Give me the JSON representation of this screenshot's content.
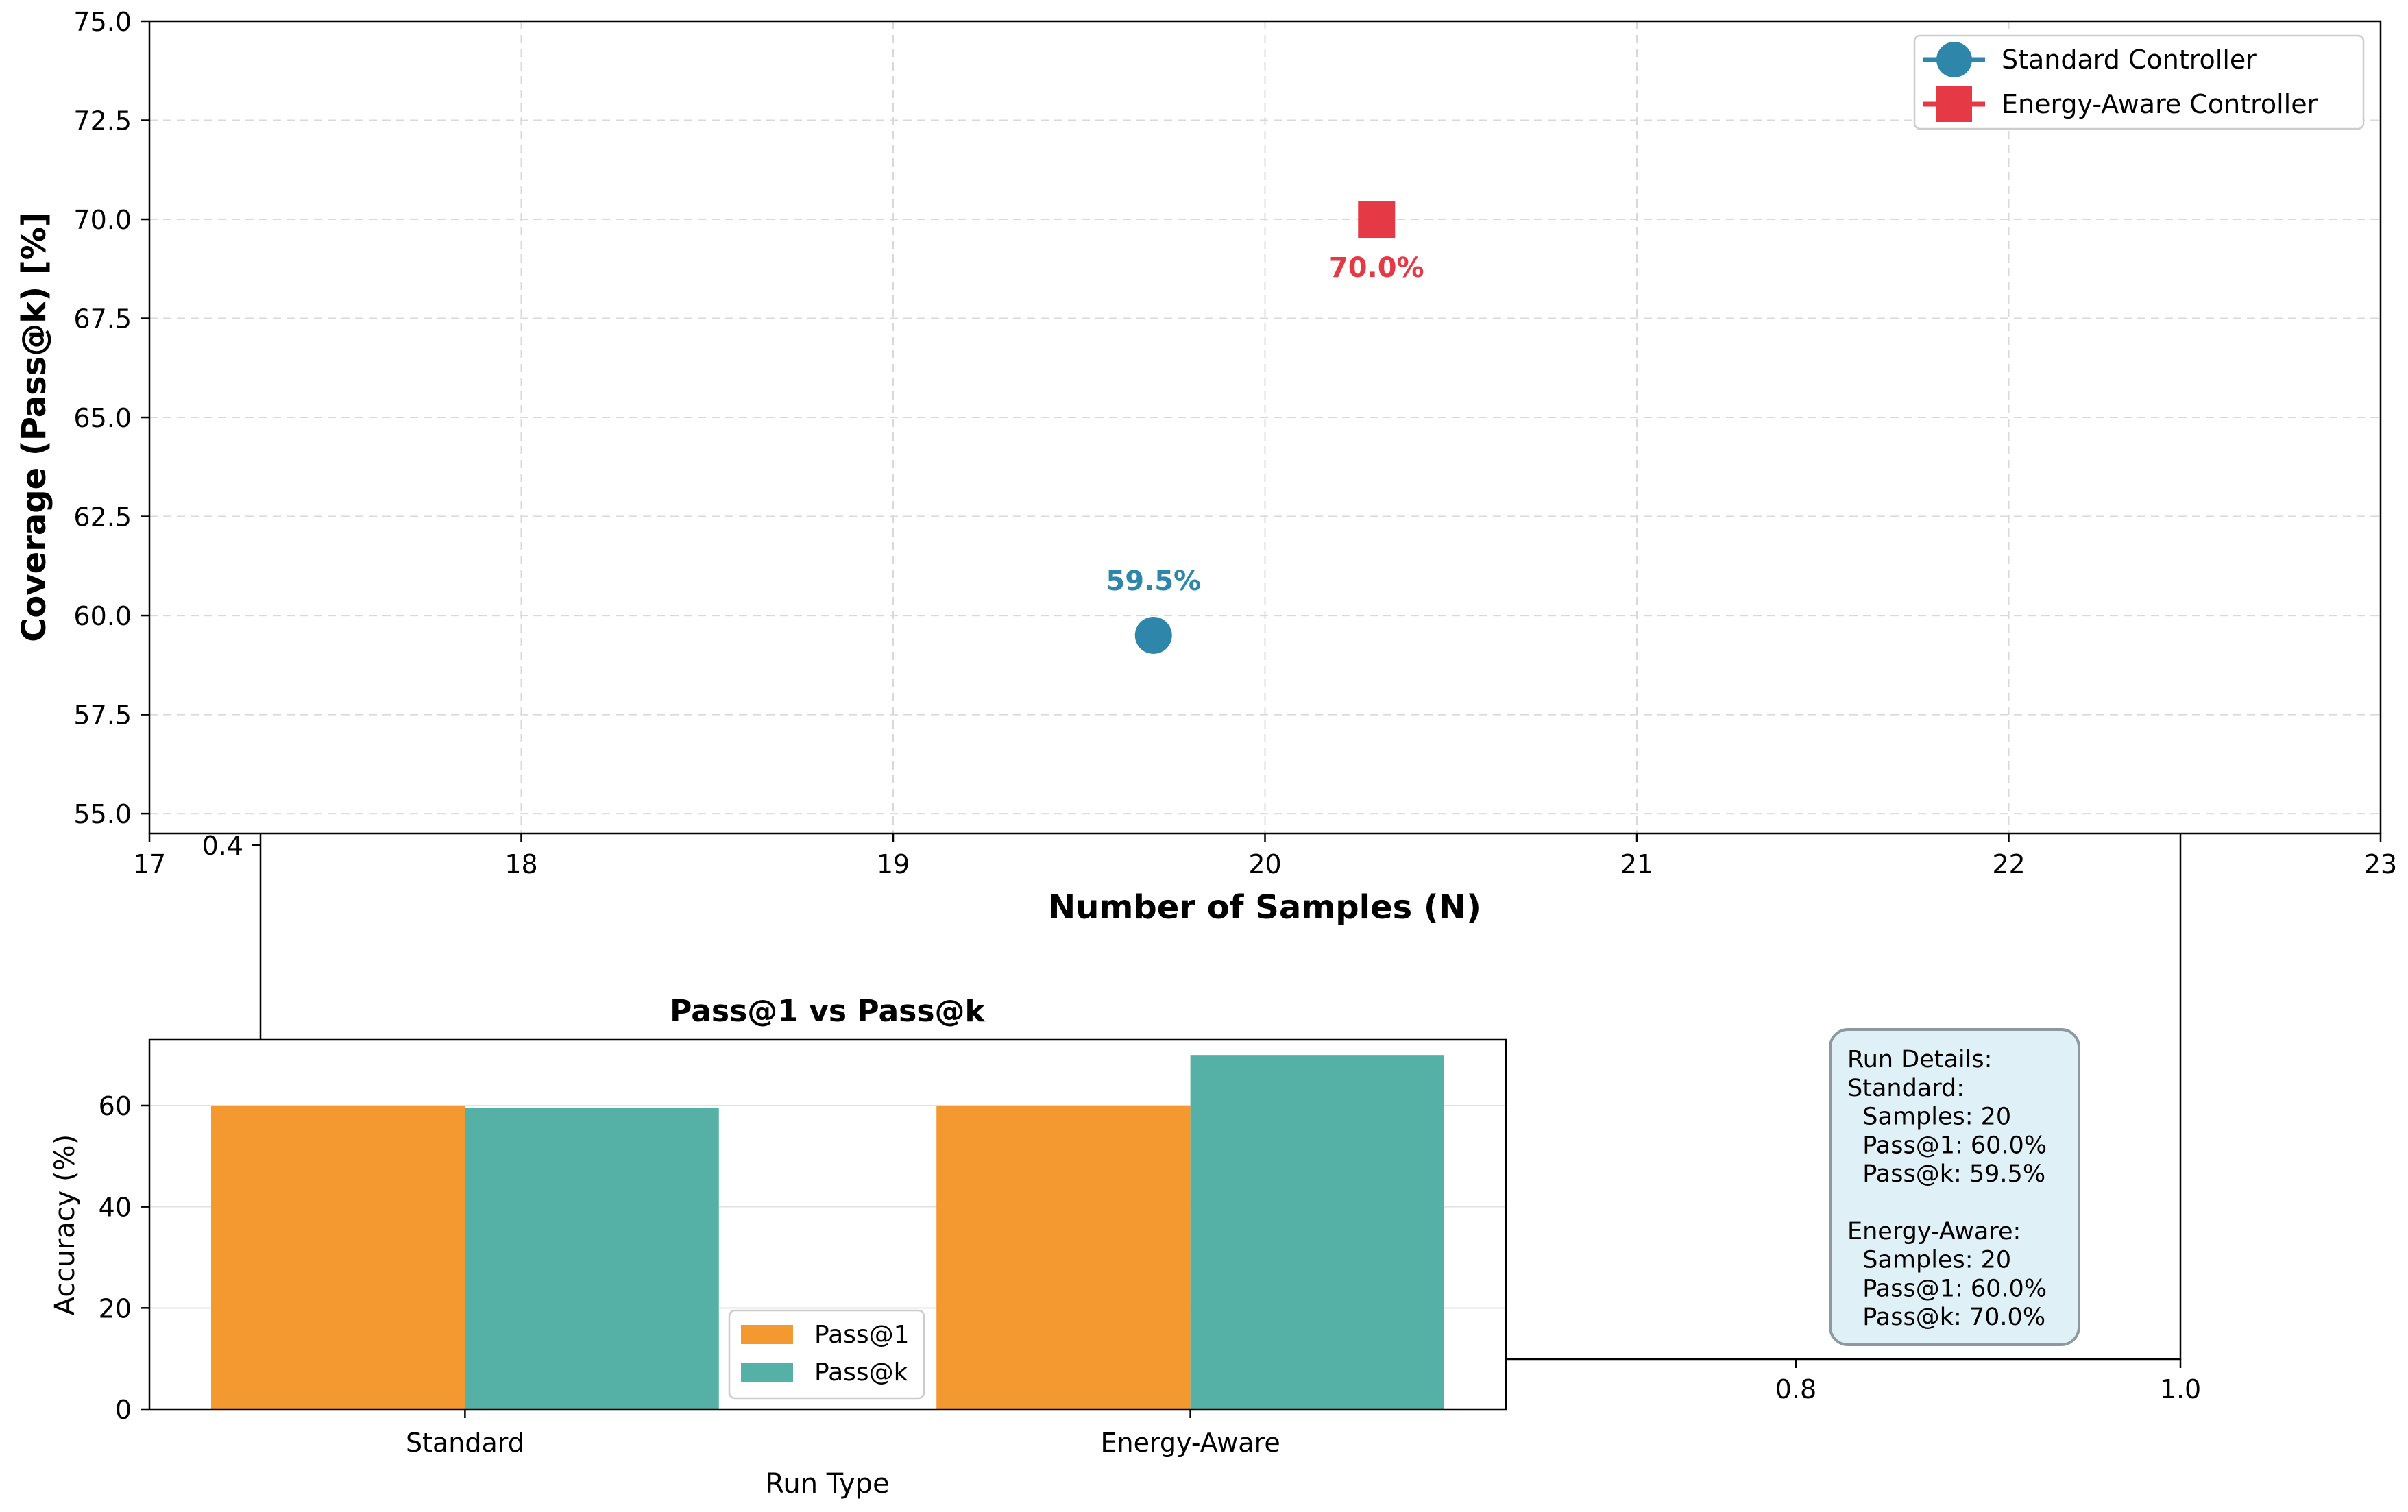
{
  "chart_data": [
    {
      "type": "scatter",
      "title": "",
      "xlabel": "Number of Samples (N)",
      "ylabel": "Coverage (Pass@k) [%]",
      "xlim": [
        17,
        23
      ],
      "ylim": [
        54.5,
        75.0
      ],
      "xticks": [
        "17",
        "18",
        "19",
        "20",
        "21",
        "22",
        "23"
      ],
      "yticks": [
        "55.0",
        "57.5",
        "60.0",
        "62.5",
        "65.0",
        "67.5",
        "70.0",
        "72.5",
        "75.0"
      ],
      "grid": true,
      "legend_position": "top-right",
      "series": [
        {
          "name": "Standard Controller",
          "color": "#2e86ab",
          "marker": "circle",
          "x": 19.7,
          "y": 59.5,
          "label": "59.5%"
        },
        {
          "name": "Energy-Aware Controller",
          "color": "#e63946",
          "marker": "square",
          "x": 20.3,
          "y": 70.0,
          "label": "70.0%"
        }
      ]
    },
    {
      "type": "bar",
      "title": "Pass@1 vs Pass@k",
      "xlabel": "Run Type",
      "ylabel": "Accuracy (%)",
      "categories": [
        "Standard",
        "Energy-Aware"
      ],
      "ylim": [
        0,
        73
      ],
      "yticks": [
        "0",
        "20",
        "40",
        "60"
      ],
      "grid": true,
      "legend_position": "bottom-center",
      "series": [
        {
          "name": "Pass@1",
          "color": "#f4992f",
          "values": [
            60.0,
            60.0
          ]
        },
        {
          "name": "Pass@k",
          "color": "#55b1a5",
          "values": [
            59.5,
            70.0
          ]
        }
      ]
    }
  ],
  "background_axes": {
    "tick_labels": {
      "left": "0.4",
      "mid": "0.8",
      "right": "1.0"
    }
  },
  "run_details": {
    "lines": [
      "Run Details:",
      "Standard:",
      "  Samples: 20",
      "  Pass@1: 60.0%",
      "  Pass@k: 59.5%",
      "",
      "Energy-Aware:",
      "  Samples: 20",
      "  Pass@1: 60.0%",
      "  Pass@k: 70.0%"
    ],
    "box_color": "#dff0f7"
  }
}
